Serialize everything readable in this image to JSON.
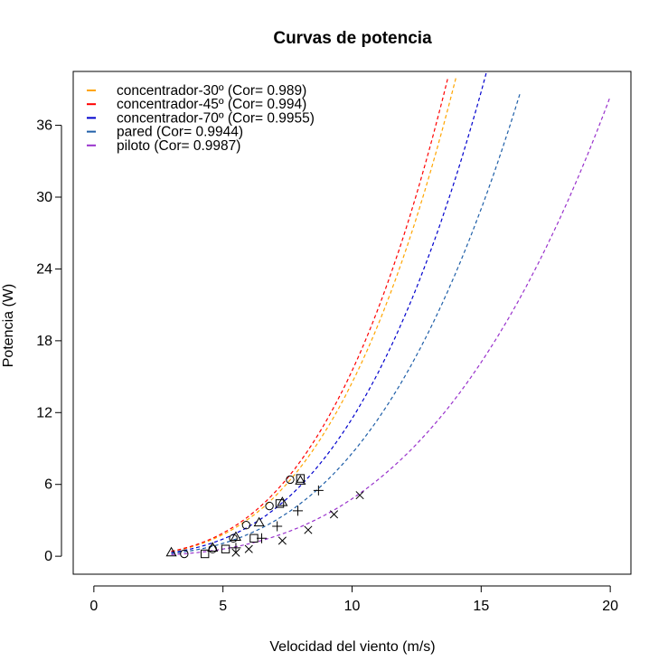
{
  "chart_data": {
    "type": "scatter",
    "title": "Curvas de potencia",
    "xlabel": "Velocidad del viento (m/s)",
    "ylabel": "Potencia (W)",
    "xlim": [
      -0.8,
      20.8
    ],
    "ylim": [
      -1.5,
      40.5
    ],
    "xticks": [
      0,
      5,
      10,
      15,
      20
    ],
    "yticks": [
      0,
      6,
      12,
      18,
      24,
      30,
      36
    ],
    "grid": false,
    "legend_position": "top-left",
    "series": [
      {
        "name": "concentrador-30º (Cor= 0.989)",
        "legend_label": "concentrador-30º (Cor= 0.989)",
        "color": "#ffa500",
        "marker": "circle",
        "points": [
          [
            3.5,
            0.2
          ],
          [
            4.6,
            0.6
          ],
          [
            5.4,
            1.5
          ],
          [
            5.9,
            2.6
          ],
          [
            6.8,
            4.2
          ],
          [
            7.6,
            6.4
          ]
        ],
        "curve": {
          "k": 0.0145,
          "x_end": 14.1
        }
      },
      {
        "name": "concentrador-45º (Cor= 0.994)",
        "legend_label": "concentrador-45º (Cor= 0.994)",
        "color": "#ff0000",
        "marker": "triangle",
        "points": [
          [
            3.0,
            0.3
          ],
          [
            4.6,
            0.7
          ],
          [
            5.5,
            1.6
          ],
          [
            6.4,
            2.8
          ],
          [
            7.3,
            4.5
          ],
          [
            8.0,
            6.3
          ]
        ],
        "curve": {
          "k": 0.0155,
          "x_end": 13.8
        }
      },
      {
        "name": "concentrador-70º (Cor= 0.9955)",
        "legend_label": "concentrador-70º (Cor= 0.9955)",
        "color": "#0000cd",
        "marker": "square",
        "points": [
          [
            4.3,
            0.2
          ],
          [
            5.1,
            0.6
          ],
          [
            6.2,
            1.5
          ],
          [
            7.2,
            4.4
          ],
          [
            8.0,
            6.5
          ]
        ],
        "curve": {
          "k": 0.0115,
          "x_end": 15.2
        }
      },
      {
        "name": "pared (Cor= 0.9944)",
        "legend_label": "pared (Cor= 0.9944)",
        "color": "#1f5fa8",
        "marker": "plus",
        "points": [
          [
            5.5,
            0.7
          ],
          [
            6.5,
            1.5
          ],
          [
            7.1,
            2.5
          ],
          [
            7.9,
            3.8
          ],
          [
            8.7,
            5.5
          ]
        ],
        "curve": {
          "k": 0.0086,
          "x_end": 16.5
        }
      },
      {
        "name": "piloto (Cor= 0.9987)",
        "legend_label": "piloto (Cor= 0.9987)",
        "color": "#9932cc",
        "marker": "cross",
        "points": [
          [
            5.5,
            0.3
          ],
          [
            6.0,
            0.6
          ],
          [
            7.3,
            1.3
          ],
          [
            8.3,
            2.2
          ],
          [
            9.3,
            3.5
          ],
          [
            10.3,
            5.1
          ]
        ],
        "curve": {
          "k": 0.0048,
          "x_end": 20.0
        }
      }
    ]
  }
}
